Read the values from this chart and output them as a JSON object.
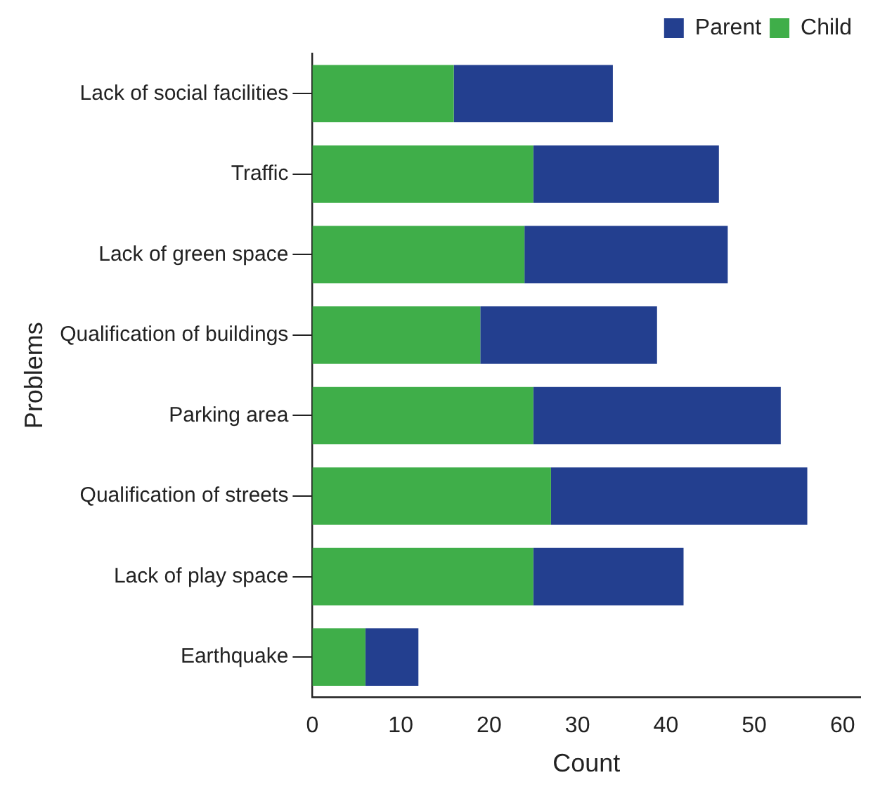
{
  "chart_data": {
    "type": "bar",
    "orientation": "horizontal",
    "stacked": true,
    "xlabel": "Count",
    "ylabel": "Problems",
    "categories": [
      "Lack of social facilities",
      "Traffic",
      "Lack of green space",
      "Qualification of buildings",
      "Parking area",
      "Qualification of streets",
      "Lack of play space",
      "Earthquake"
    ],
    "series": [
      {
        "name": "Child",
        "color": "#3fae49",
        "values": [
          16,
          25,
          24,
          19,
          25,
          27,
          25,
          6
        ]
      },
      {
        "name": "Parent",
        "color": "#233f8f",
        "values": [
          18,
          21,
          23,
          20,
          28,
          29,
          17,
          6
        ]
      }
    ],
    "xlim": [
      0,
      62
    ],
    "xticks": [
      0,
      10,
      20,
      30,
      40,
      50,
      60
    ],
    "grid": false,
    "legend": "top right"
  }
}
